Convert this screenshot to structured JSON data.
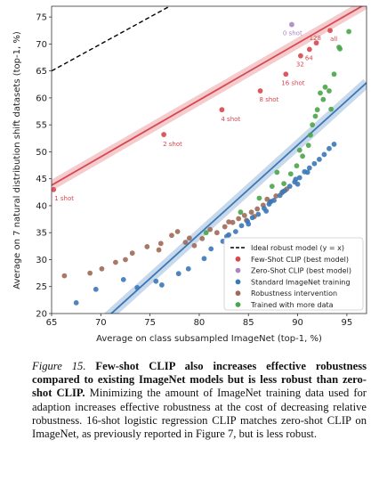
{
  "chart_data": {
    "type": "scatter",
    "xlabel": "Average on class subsampled ImageNet (top-1, %)",
    "ylabel": "Average on 7 natural distribution shift datasets (top-1, %)",
    "xlim": [
      65,
      97
    ],
    "ylim": [
      20,
      77
    ],
    "x_ticks": [
      65,
      70,
      75,
      80,
      85,
      90,
      95
    ],
    "y_ticks": [
      20,
      25,
      30,
      35,
      40,
      45,
      50,
      55,
      60,
      65,
      70,
      75
    ],
    "legend_position": "bottom-right",
    "colors": {
      "few_shot": "#d9474f",
      "zero_shot": "#a986c4",
      "standard": "#3b78b8",
      "robustness": "#a06a58",
      "more_data": "#4aa54a",
      "ideal": "#000000"
    },
    "legend": [
      {
        "key": "ideal",
        "label": "Ideal robust model (y = x)",
        "kind": "line"
      },
      {
        "key": "few_shot",
        "label": "Few-Shot CLIP (best model)",
        "kind": "dot"
      },
      {
        "key": "zero_shot",
        "label": "Zero-Shot CLIP (best model)",
        "kind": "dot"
      },
      {
        "key": "standard",
        "label": "Standard ImageNet training",
        "kind": "dot"
      },
      {
        "key": "robustness",
        "label": "Robustness intervention",
        "kind": "dot"
      },
      {
        "key": "more_data",
        "label": "Trained with more data",
        "kind": "dot"
      }
    ],
    "fits": [
      {
        "key": "few_shot",
        "x": [
          65,
          97
        ],
        "y": [
          43.8,
          77.5
        ]
      },
      {
        "key": "standard",
        "x": [
          65,
          97
        ],
        "y": [
          10,
          62.8
        ]
      }
    ],
    "few_shot_points": [
      {
        "x": 65.2,
        "y": 43.0,
        "label": "1 shot"
      },
      {
        "x": 76.4,
        "y": 53.2,
        "label": "2 shot"
      },
      {
        "x": 82.3,
        "y": 57.8,
        "label": "4 shot"
      },
      {
        "x": 86.2,
        "y": 61.3,
        "label": "8 shot"
      },
      {
        "x": 88.8,
        "y": 64.4,
        "label": "16 shot"
      },
      {
        "x": 90.3,
        "y": 67.8,
        "label": "32"
      },
      {
        "x": 91.2,
        "y": 69.0,
        "label": "64"
      },
      {
        "x": 91.9,
        "y": 70.2,
        "label": "128"
      },
      {
        "x": 93.3,
        "y": 72.5,
        "label": "all"
      }
    ],
    "zero_shot_points": [
      {
        "x": 89.4,
        "y": 73.6,
        "label": "0 shot"
      }
    ],
    "standard_points": [
      {
        "x": 67.5,
        "y": 22.0
      },
      {
        "x": 69.5,
        "y": 24.5
      },
      {
        "x": 72.3,
        "y": 26.3
      },
      {
        "x": 73.7,
        "y": 24.8
      },
      {
        "x": 75.6,
        "y": 26.0
      },
      {
        "x": 76.2,
        "y": 25.3
      },
      {
        "x": 77.9,
        "y": 27.4
      },
      {
        "x": 78.9,
        "y": 28.3
      },
      {
        "x": 80.5,
        "y": 30.2
      },
      {
        "x": 81.2,
        "y": 32.0
      },
      {
        "x": 82.4,
        "y": 33.4
      },
      {
        "x": 83.0,
        "y": 34.6
      },
      {
        "x": 83.7,
        "y": 35.2
      },
      {
        "x": 84.3,
        "y": 36.3
      },
      {
        "x": 84.9,
        "y": 37.1
      },
      {
        "x": 85.4,
        "y": 37.8
      },
      {
        "x": 86.0,
        "y": 38.4
      },
      {
        "x": 86.6,
        "y": 39.5
      },
      {
        "x": 87.1,
        "y": 40.3
      },
      {
        "x": 87.6,
        "y": 41.0
      },
      {
        "x": 88.2,
        "y": 41.9
      },
      {
        "x": 88.7,
        "y": 42.8
      },
      {
        "x": 89.2,
        "y": 43.6
      },
      {
        "x": 89.7,
        "y": 44.4
      },
      {
        "x": 90.2,
        "y": 45.2
      },
      {
        "x": 90.7,
        "y": 46.3
      },
      {
        "x": 91.2,
        "y": 47.0
      },
      {
        "x": 91.7,
        "y": 47.8
      },
      {
        "x": 92.2,
        "y": 48.6
      },
      {
        "x": 92.7,
        "y": 49.5
      },
      {
        "x": 93.2,
        "y": 50.6
      },
      {
        "x": 93.7,
        "y": 51.4
      },
      {
        "x": 82.8,
        "y": 34.3
      },
      {
        "x": 85.0,
        "y": 36.6
      },
      {
        "x": 87.3,
        "y": 40.8
      },
      {
        "x": 88.5,
        "y": 42.6
      },
      {
        "x": 89.8,
        "y": 44.9
      },
      {
        "x": 91.0,
        "y": 46.2
      },
      {
        "x": 86.8,
        "y": 39.0
      },
      {
        "x": 90.0,
        "y": 44.0
      }
    ],
    "robustness_points": [
      {
        "x": 66.3,
        "y": 27.0
      },
      {
        "x": 68.9,
        "y": 27.5
      },
      {
        "x": 70.1,
        "y": 28.3
      },
      {
        "x": 71.5,
        "y": 29.5
      },
      {
        "x": 73.2,
        "y": 31.2
      },
      {
        "x": 74.7,
        "y": 32.4
      },
      {
        "x": 75.9,
        "y": 31.8
      },
      {
        "x": 77.2,
        "y": 34.5
      },
      {
        "x": 77.8,
        "y": 35.2
      },
      {
        "x": 78.6,
        "y": 33.2
      },
      {
        "x": 79.5,
        "y": 32.6
      },
      {
        "x": 80.3,
        "y": 33.9
      },
      {
        "x": 81.1,
        "y": 35.6
      },
      {
        "x": 81.8,
        "y": 35.0
      },
      {
        "x": 82.6,
        "y": 36.1
      },
      {
        "x": 83.4,
        "y": 36.9
      },
      {
        "x": 84.0,
        "y": 37.6
      },
      {
        "x": 84.6,
        "y": 38.2
      },
      {
        "x": 85.3,
        "y": 38.8
      },
      {
        "x": 85.9,
        "y": 39.4
      },
      {
        "x": 86.5,
        "y": 40.1
      },
      {
        "x": 87.2,
        "y": 40.7
      },
      {
        "x": 87.8,
        "y": 41.8
      },
      {
        "x": 88.4,
        "y": 42.4
      },
      {
        "x": 76.1,
        "y": 33.0
      },
      {
        "x": 79.0,
        "y": 34.0
      },
      {
        "x": 83.0,
        "y": 37.0
      },
      {
        "x": 85.6,
        "y": 38.0
      },
      {
        "x": 86.9,
        "y": 41.2
      },
      {
        "x": 88.9,
        "y": 43.1
      },
      {
        "x": 84.8,
        "y": 37.3
      },
      {
        "x": 72.5,
        "y": 30.0
      }
    ],
    "more_data_points": [
      {
        "x": 80.7,
        "y": 35.0
      },
      {
        "x": 84.2,
        "y": 38.8
      },
      {
        "x": 86.1,
        "y": 41.4
      },
      {
        "x": 87.4,
        "y": 43.6
      },
      {
        "x": 87.9,
        "y": 46.2
      },
      {
        "x": 88.6,
        "y": 44.1
      },
      {
        "x": 89.3,
        "y": 45.9
      },
      {
        "x": 89.9,
        "y": 47.4
      },
      {
        "x": 90.5,
        "y": 49.2
      },
      {
        "x": 91.1,
        "y": 51.2
      },
      {
        "x": 91.3,
        "y": 53.1
      },
      {
        "x": 91.5,
        "y": 55.0
      },
      {
        "x": 92.0,
        "y": 57.8
      },
      {
        "x": 92.3,
        "y": 60.9
      },
      {
        "x": 92.8,
        "y": 62.0
      },
      {
        "x": 93.2,
        "y": 61.3
      },
      {
        "x": 93.7,
        "y": 64.4
      },
      {
        "x": 94.3,
        "y": 69.1
      },
      {
        "x": 94.2,
        "y": 69.4
      },
      {
        "x": 95.2,
        "y": 72.3
      },
      {
        "x": 90.2,
        "y": 50.3
      },
      {
        "x": 91.8,
        "y": 56.6
      },
      {
        "x": 92.6,
        "y": 59.7
      },
      {
        "x": 93.4,
        "y": 57.9
      }
    ]
  },
  "caption": {
    "figure_label": "Figure 15.",
    "bold_text": "Few-shot CLIP also increases effective robustness compared to existing ImageNet models but is less robust than zero-shot CLIP.",
    "body_text": "Minimizing the amount of ImageNet training data used for adaption increases effective robustness at the cost of decreasing relative robustness. 16-shot logistic regression CLIP matches zero-shot CLIP on ImageNet, as previously reported in Figure 7, but is less robust."
  }
}
